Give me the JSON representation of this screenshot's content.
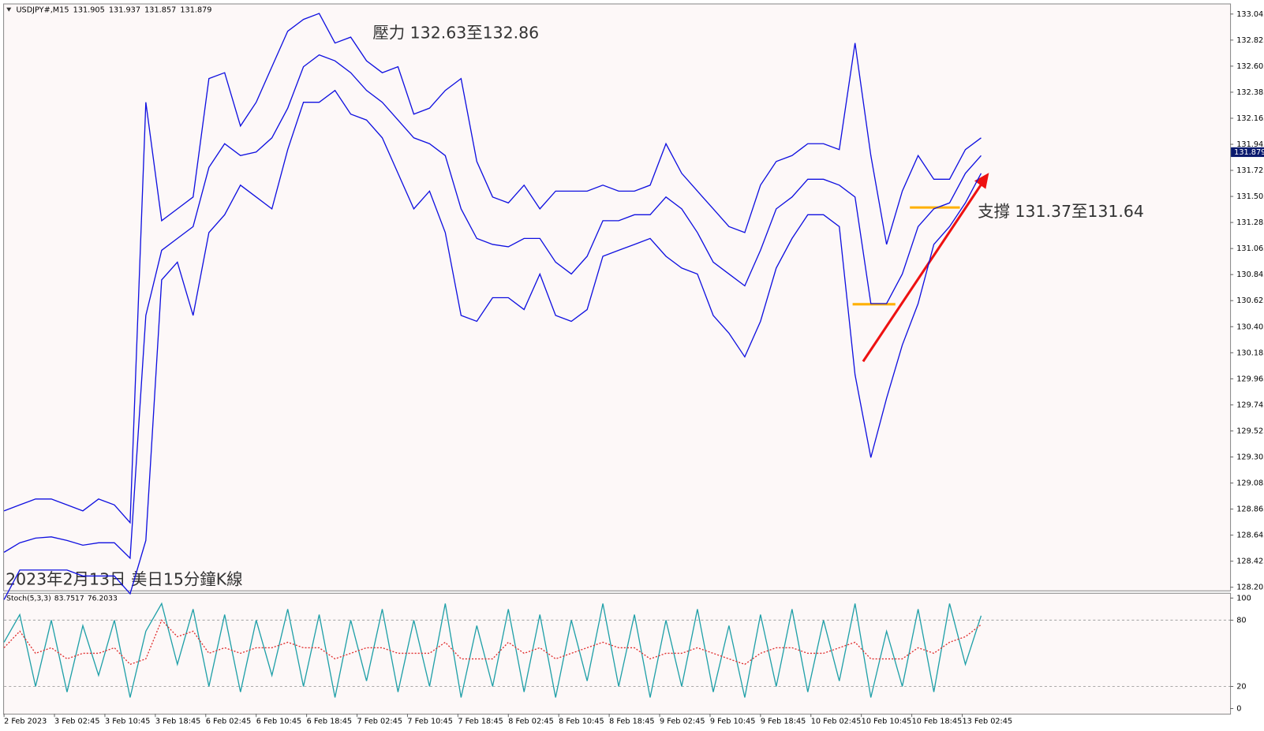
{
  "chart_data": [
    {
      "type": "line",
      "symbol": "USDJPY#,M15",
      "ohlc": [
        131.905,
        131.937,
        131.857,
        131.879
      ],
      "annotations": [
        "壓力 132.63至132.86",
        "支撐 131.37至131.64",
        "2023年2月13日 美日15分鐘K線"
      ],
      "last_price": 131.879,
      "x": [
        0,
        10,
        20,
        30,
        40,
        50,
        60,
        70,
        80,
        90,
        100,
        110,
        120,
        130,
        140,
        150,
        160,
        170,
        180,
        190,
        200,
        210,
        220,
        230,
        240,
        250,
        260,
        270,
        280,
        290,
        300,
        310,
        320,
        330,
        340,
        350,
        360,
        370,
        380,
        390,
        400,
        410,
        420,
        430,
        440,
        450,
        460,
        470,
        480,
        490,
        500,
        510,
        520,
        530,
        540,
        550,
        560,
        570,
        580,
        590,
        600,
        610,
        620
      ],
      "xlim": [
        0,
        778
      ],
      "xticks": [
        {
          "value": 0,
          "label": "2 Feb 2023"
        },
        {
          "value": 32,
          "label": "3 Feb 02:45"
        },
        {
          "value": 64,
          "label": "3 Feb 10:45"
        },
        {
          "value": 96,
          "label": "3 Feb 18:45"
        },
        {
          "value": 128,
          "label": "6 Feb 02:45"
        },
        {
          "value": 160,
          "label": "6 Feb 10:45"
        },
        {
          "value": 192,
          "label": "6 Feb 18:45"
        },
        {
          "value": 224,
          "label": "7 Feb 02:45"
        },
        {
          "value": 256,
          "label": "7 Feb 10:45"
        },
        {
          "value": 288,
          "label": "7 Feb 18:45"
        },
        {
          "value": 320,
          "label": "8 Feb 02:45"
        },
        {
          "value": 352,
          "label": "8 Feb 10:45"
        },
        {
          "value": 384,
          "label": "8 Feb 18:45"
        },
        {
          "value": 416,
          "label": "9 Feb 02:45"
        },
        {
          "value": 448,
          "label": "9 Feb 10:45"
        },
        {
          "value": 480,
          "label": "9 Feb 18:45"
        },
        {
          "value": 512,
          "label": "10 Feb 02:45"
        },
        {
          "value": 544,
          "label": "10 Feb 10:45"
        },
        {
          "value": 576,
          "label": "10 Feb 18:45"
        },
        {
          "value": 608,
          "label": "13 Feb 02:45"
        }
      ],
      "ylim": [
        128.178,
        133.127
      ],
      "yticks": [
        133.045,
        132.825,
        132.605,
        132.385,
        132.165,
        131.945,
        131.725,
        131.505,
        131.285,
        131.065,
        130.845,
        130.625,
        130.405,
        130.185,
        129.965,
        129.745,
        129.525,
        129.305,
        129.085,
        128.865,
        128.645,
        128.425,
        128.205
      ],
      "series": [
        {
          "color": "#1010e0",
          "values": [
            128.85,
            128.9,
            128.95,
            128.95,
            128.9,
            128.85,
            128.95,
            128.9,
            128.75,
            132.3,
            131.3,
            131.4,
            131.5,
            132.5,
            132.55,
            132.1,
            132.3,
            132.6,
            132.9,
            133.0,
            133.05,
            132.8,
            132.85,
            132.65,
            132.55,
            132.6,
            132.2,
            132.25,
            132.4,
            132.5,
            131.8,
            131.5,
            131.45,
            131.6,
            131.4,
            131.55,
            131.55,
            131.55,
            131.6,
            131.55,
            131.55,
            131.6,
            131.95,
            131.7,
            131.55,
            131.4,
            131.25,
            131.2,
            131.6,
            131.8,
            131.85,
            131.95,
            131.95,
            131.9,
            132.8,
            131.85,
            131.1,
            131.55,
            131.85,
            131.65,
            131.65,
            131.9,
            132.0
          ]
        },
        {
          "color": "#1010e0",
          "values": [
            128.5,
            128.58,
            128.62,
            128.63,
            128.6,
            128.56,
            128.58,
            128.58,
            128.45,
            130.5,
            131.05,
            131.15,
            131.25,
            131.75,
            131.95,
            131.85,
            131.88,
            132.0,
            132.25,
            132.6,
            132.7,
            132.65,
            132.55,
            132.4,
            132.3,
            132.15,
            132.0,
            131.95,
            131.85,
            131.4,
            131.15,
            131.1,
            131.08,
            131.15,
            131.15,
            130.95,
            130.85,
            131.0,
            131.3,
            131.3,
            131.35,
            131.35,
            131.5,
            131.4,
            131.2,
            130.95,
            130.85,
            130.75,
            131.05,
            131.4,
            131.5,
            131.65,
            131.65,
            131.6,
            131.5,
            130.6,
            130.6,
            130.85,
            131.25,
            131.4,
            131.45,
            131.7,
            131.85
          ]
        },
        {
          "color": "#1010e0",
          "values": [
            128.1,
            128.35,
            128.35,
            128.35,
            128.35,
            128.3,
            128.3,
            128.3,
            128.15,
            128.6,
            130.8,
            130.95,
            130.5,
            131.2,
            131.35,
            131.6,
            131.5,
            131.4,
            131.9,
            132.3,
            132.3,
            132.4,
            132.2,
            132.15,
            132.0,
            131.7,
            131.4,
            131.55,
            131.2,
            130.5,
            130.45,
            130.65,
            130.65,
            130.55,
            130.85,
            130.5,
            130.45,
            130.55,
            131.0,
            131.05,
            131.1,
            131.15,
            131.0,
            130.9,
            130.85,
            130.5,
            130.35,
            130.15,
            130.45,
            130.9,
            131.15,
            131.35,
            131.35,
            131.25,
            130.0,
            129.3,
            129.8,
            130.25,
            130.6,
            131.1,
            131.25,
            131.45,
            131.7
          ]
        }
      ]
    },
    {
      "type": "line",
      "indicator": "Stoch(5,3,3)",
      "indicator_values": [
        83.7517,
        76.2033
      ],
      "x": [
        0,
        10,
        20,
        30,
        40,
        50,
        60,
        70,
        80,
        90,
        100,
        110,
        120,
        130,
        140,
        150,
        160,
        170,
        180,
        190,
        200,
        210,
        220,
        230,
        240,
        250,
        260,
        270,
        280,
        290,
        300,
        310,
        320,
        330,
        340,
        350,
        360,
        370,
        380,
        390,
        400,
        410,
        420,
        430,
        440,
        450,
        460,
        470,
        480,
        490,
        500,
        510,
        520,
        530,
        540,
        550,
        560,
        570,
        580,
        590,
        600,
        610,
        620
      ],
      "xlim": [
        0,
        778
      ],
      "ylim": [
        -4,
        104
      ],
      "yticks": [
        100,
        80,
        20,
        0
      ],
      "levels": [
        20,
        80
      ],
      "series": [
        {
          "color": "#20a0a8",
          "values": [
            60,
            85,
            20,
            80,
            15,
            75,
            30,
            80,
            10,
            70,
            95,
            40,
            90,
            20,
            85,
            15,
            80,
            30,
            90,
            20,
            85,
            10,
            80,
            25,
            90,
            15,
            80,
            20,
            95,
            10,
            75,
            20,
            90,
            15,
            85,
            10,
            80,
            25,
            95,
            20,
            85,
            10,
            80,
            20,
            90,
            15,
            75,
            10,
            85,
            20,
            90,
            15,
            80,
            25,
            95,
            10,
            70,
            20,
            90,
            15,
            95,
            40,
            84
          ]
        },
        {
          "color": "#e03030",
          "dash": true,
          "values": [
            55,
            70,
            50,
            55,
            45,
            50,
            50,
            55,
            40,
            45,
            80,
            65,
            70,
            50,
            55,
            50,
            55,
            55,
            60,
            55,
            55,
            45,
            50,
            55,
            55,
            50,
            50,
            50,
            60,
            45,
            45,
            45,
            60,
            50,
            55,
            45,
            50,
            55,
            60,
            55,
            55,
            45,
            50,
            50,
            55,
            50,
            45,
            40,
            50,
            55,
            55,
            50,
            50,
            55,
            60,
            45,
            45,
            45,
            55,
            50,
            60,
            65,
            76
          ]
        }
      ]
    }
  ]
}
